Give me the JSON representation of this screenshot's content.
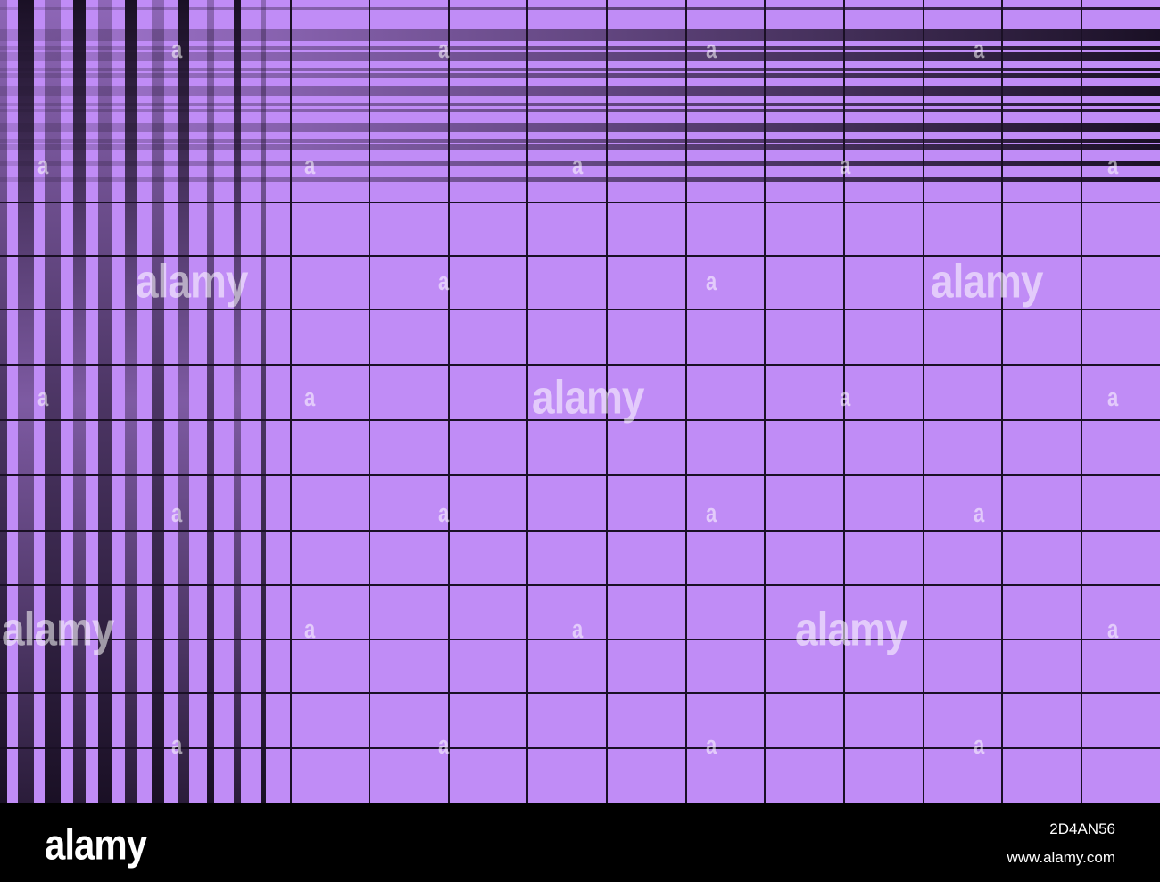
{
  "image": {
    "background_color": "#c08cf6",
    "line_color": "#1a1025",
    "footer_color": "#000000"
  },
  "watermark": {
    "text": "alamy",
    "small_text": "a"
  },
  "footer": {
    "logo": "alamy",
    "image_id": "2D4AN56",
    "url": "www.alamy.com"
  }
}
